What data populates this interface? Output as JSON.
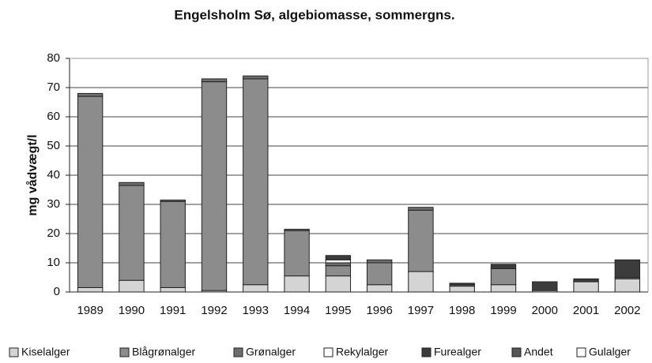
{
  "chart_data": {
    "type": "stacked_bar",
    "title": "Engelsholm Sø, algebiomasse, sommergns.",
    "y_label": "mg vådvægt/l",
    "categories": [
      "1989",
      "1990",
      "1991",
      "1992",
      "1993",
      "1994",
      "1995",
      "1996",
      "1997",
      "1998",
      "1999",
      "2000",
      "2001",
      "2002"
    ],
    "series": [
      {
        "name": "Kiselalger",
        "color": "#d4d4d4",
        "values": [
          1.5,
          4,
          1.5,
          0.5,
          2.5,
          5.5,
          5.5,
          2.5,
          7,
          2,
          2.5,
          0.5,
          3.5,
          4.5
        ]
      },
      {
        "name": "Blågrønalger",
        "color": "#8c8c8c",
        "values": [
          65.5,
          32.5,
          29.5,
          71.5,
          70.5,
          15.5,
          3.5,
          7.5,
          21,
          0,
          5.5,
          0,
          0,
          0
        ]
      },
      {
        "name": "Grønalger",
        "color": "#6e6e6e",
        "values": [
          1,
          1,
          0.5,
          1,
          1,
          0.5,
          1,
          1,
          1,
          0.5,
          0,
          0,
          0,
          0.5
        ]
      },
      {
        "name": "Rekylalger",
        "color": "#ffffff",
        "values": [
          0,
          0,
          0,
          0,
          0,
          0,
          1,
          0,
          0,
          0,
          0,
          0,
          0,
          0
        ]
      },
      {
        "name": "Furealger",
        "color": "#3c3c3c",
        "values": [
          0,
          0,
          0,
          0,
          0,
          0,
          1.5,
          0,
          0,
          0.5,
          1.5,
          3,
          1,
          6
        ]
      },
      {
        "name": "Andet",
        "color": "#555555",
        "values": [
          0,
          0,
          0,
          0,
          0,
          0,
          0,
          0,
          0,
          0,
          0,
          0,
          0,
          0
        ]
      },
      {
        "name": "Gulalger",
        "color": "#ffffff",
        "values": [
          0,
          0,
          0,
          0,
          0,
          0,
          0,
          0,
          0,
          0,
          0,
          0,
          0,
          0
        ]
      }
    ],
    "ylim": [
      0,
      80
    ],
    "yticks": [
      0,
      10,
      20,
      30,
      40,
      50,
      60,
      70,
      80
    ],
    "grid": true
  }
}
